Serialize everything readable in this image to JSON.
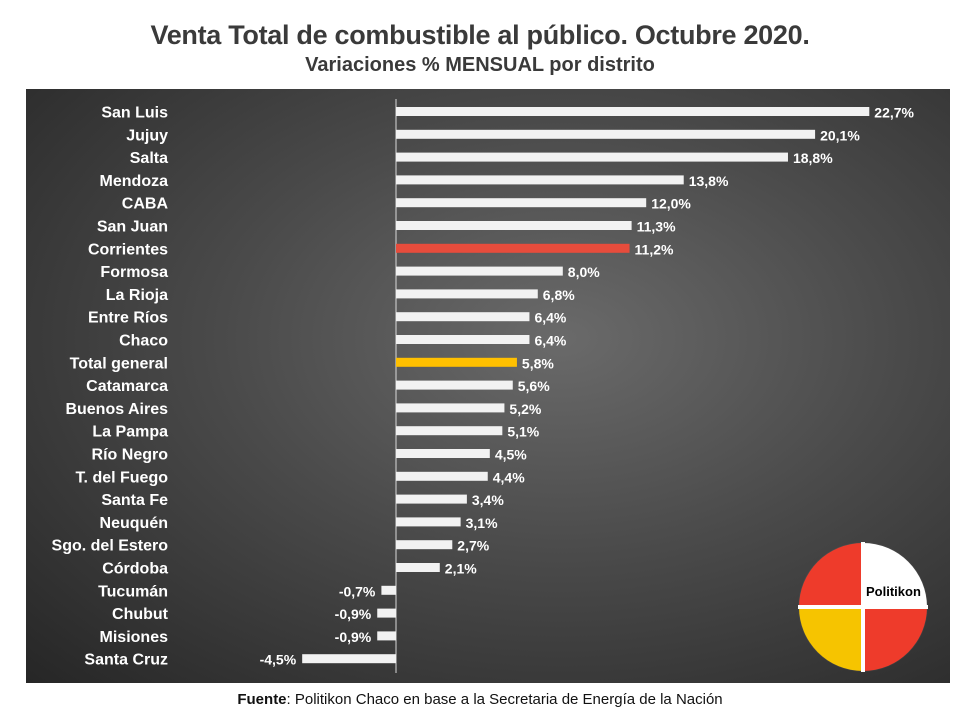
{
  "title": "Venta Total de combustible al público. Octubre 2020.",
  "subtitle": "Variaciones % MENSUAL por distrito",
  "source": {
    "label": "Fuente",
    "text": ": Politikon Chaco en base a la Secretaria de Energía de la Nación"
  },
  "logo": {
    "text": "Politikon",
    "colors": [
      "#ee3b2b",
      "#ffffff",
      "#f6c400",
      "#ee3b2b"
    ]
  },
  "colors": {
    "default_bar": "#f2f2f2",
    "highlight_corrientes": "#e74c3c",
    "highlight_total": "#ffc000",
    "label_text": "#ffffff"
  },
  "chart_data": {
    "type": "bar",
    "orientation": "horizontal",
    "title": "Venta Total de combustible al público. Octubre 2020.",
    "subtitle": "Variaciones % MENSUAL por distrito",
    "categories": [
      "San Luis",
      "Jujuy",
      "Salta",
      "Mendoza",
      "CABA",
      "San Juan",
      "Corrientes",
      "Formosa",
      "La Rioja",
      "Entre Ríos",
      "Chaco",
      "Total general",
      "Catamarca",
      "Buenos Aires",
      "La Pampa",
      "Río Negro",
      "T. del Fuego",
      "Santa Fe",
      "Neuquén",
      "Sgo. del Estero",
      "Córdoba",
      "Tucumán",
      "Chubut",
      "Misiones",
      "Santa Cruz"
    ],
    "values": [
      22.7,
      20.1,
      18.8,
      13.8,
      12.0,
      11.3,
      11.2,
      8.0,
      6.8,
      6.4,
      6.4,
      5.8,
      5.6,
      5.2,
      5.1,
      4.5,
      4.4,
      3.4,
      3.1,
      2.7,
      2.1,
      -0.7,
      -0.9,
      -0.9,
      -4.5
    ],
    "labels": [
      "22,7%",
      "20,1%",
      "18,8%",
      "13,8%",
      "12,0%",
      "11,3%",
      "11,2%",
      "8,0%",
      "6,8%",
      "6,4%",
      "6,4%",
      "5,8%",
      "5,6%",
      "5,2%",
      "5,1%",
      "4,5%",
      "4,4%",
      "3,4%",
      "3,1%",
      "2,7%",
      "2,1%",
      "-0,7%",
      "-0,9%",
      "-0,9%",
      "-4,5%"
    ],
    "highlight": {
      "Corrientes": "#e74c3c",
      "Total general": "#ffc000"
    },
    "unit": "%",
    "grid": false,
    "legend": "none"
  }
}
